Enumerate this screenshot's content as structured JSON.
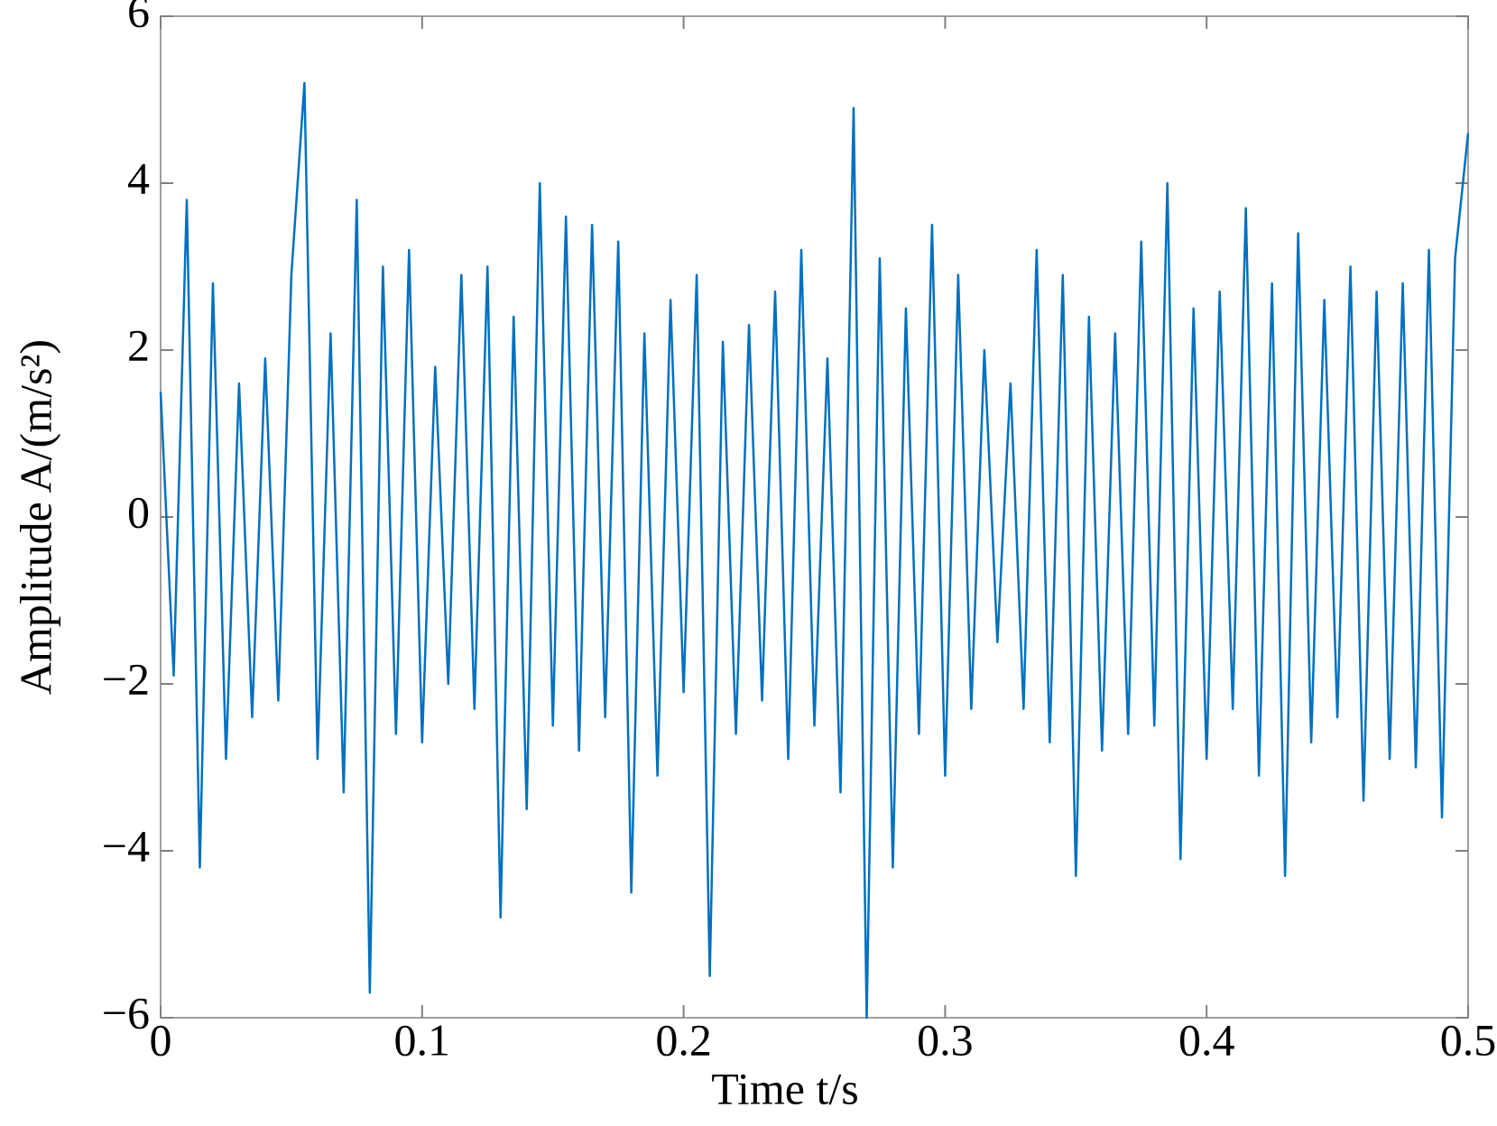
{
  "chart_data": {
    "type": "line",
    "x_label": "Time t/s",
    "y_label": "Amplitude A/(m/s²)",
    "xlim": [
      0,
      0.5
    ],
    "ylim": [
      -6,
      6
    ],
    "xticks": [
      0,
      0.1,
      0.2,
      0.3,
      0.4,
      0.5
    ],
    "yticks": [
      {
        "value": -6,
        "label": "−6"
      },
      {
        "value": -4,
        "label": "−4"
      },
      {
        "value": -2,
        "label": "−2"
      },
      0,
      2,
      4,
      6
    ],
    "grid": false,
    "x": [
      0,
      0.005,
      0.01,
      0.015,
      0.02,
      0.025,
      0.03,
      0.035,
      0.04,
      0.045,
      0.05,
      0.055,
      0.06,
      0.065,
      0.07,
      0.075,
      0.08,
      0.085,
      0.09,
      0.095,
      0.1,
      0.105,
      0.11,
      0.115,
      0.12,
      0.125,
      0.13,
      0.135,
      0.14,
      0.145,
      0.15,
      0.155,
      0.16,
      0.165,
      0.17,
      0.175,
      0.18,
      0.185,
      0.19,
      0.195,
      0.2,
      0.205,
      0.21,
      0.215,
      0.22,
      0.225,
      0.23,
      0.235,
      0.24,
      0.245,
      0.25,
      0.255,
      0.26,
      0.265,
      0.27,
      0.275,
      0.28,
      0.285,
      0.29,
      0.295,
      0.3,
      0.305,
      0.31,
      0.315,
      0.32,
      0.325,
      0.33,
      0.335,
      0.34,
      0.345,
      0.35,
      0.355,
      0.36,
      0.365,
      0.37,
      0.375,
      0.38,
      0.385,
      0.39,
      0.395,
      0.4,
      0.405,
      0.41,
      0.415,
      0.42,
      0.425,
      0.43,
      0.435,
      0.44,
      0.445,
      0.45,
      0.455,
      0.46,
      0.465,
      0.47,
      0.475,
      0.48,
      0.485,
      0.49,
      0.495,
      0.5
    ],
    "series": [
      {
        "color": "#0070c0",
        "values": [
          1.5,
          -1.9,
          3.8,
          -4.2,
          2.8,
          -2.9,
          1.6,
          -2.4,
          1.9,
          -2.2,
          2.9,
          5.2,
          -2.9,
          2.2,
          -3.3,
          3.8,
          -5.7,
          3.0,
          -2.6,
          3.2,
          -2.7,
          1.8,
          -2.0,
          2.9,
          -2.3,
          3.0,
          -4.8,
          2.4,
          -3.5,
          4.0,
          -2.5,
          3.6,
          -2.8,
          3.5,
          -2.4,
          3.3,
          -4.5,
          2.2,
          -3.1,
          2.6,
          -2.1,
          2.9,
          -5.5,
          2.1,
          -2.6,
          2.3,
          -2.2,
          2.7,
          -2.9,
          3.2,
          -2.5,
          1.9,
          -3.3,
          4.9,
          -6.0,
          3.1,
          -4.2,
          2.5,
          -2.6,
          3.5,
          -3.1,
          2.9,
          -2.3,
          2.0,
          -1.5,
          1.6,
          -2.3,
          3.2,
          -2.7,
          2.9,
          -4.3,
          2.4,
          -2.8,
          2.2,
          -2.6,
          3.3,
          -2.5,
          4.0,
          -4.1,
          2.5,
          -2.9,
          2.7,
          -2.3,
          3.7,
          -3.1,
          2.8,
          -4.3,
          3.4,
          -2.7,
          2.6,
          -2.4,
          3.0,
          -3.4,
          2.7,
          -2.9,
          2.8,
          -3.0,
          3.2,
          -3.6,
          3.1,
          4.6
        ]
      }
    ]
  }
}
